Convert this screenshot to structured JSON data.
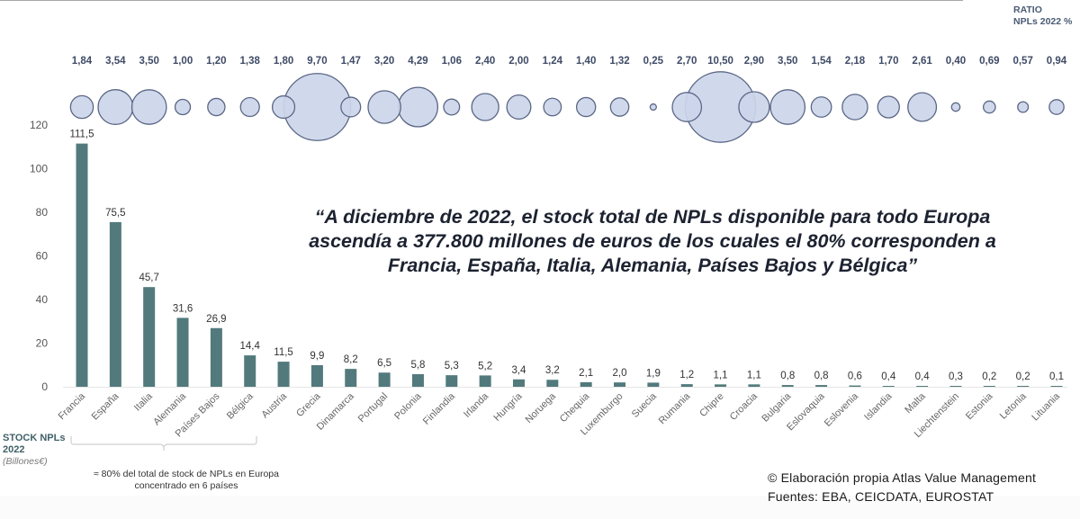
{
  "header": {
    "ratio_title_line1": "RATIO",
    "ratio_title_line2": "NPLs 2022 %"
  },
  "quote": "“A diciembre de 2022, el stock total de NPLs disponible para todo Europa ascendía a 377.800 millones de euros de los cuales el 80% corresponden a Francia, España, Italia, Alemania, Países Bajos y Bélgica”",
  "axis_label": {
    "line1": "STOCK NPLs",
    "line2": "2022",
    "unit": "(Billones€)"
  },
  "bracket_note": "≈ 80% del total de stock de NPLs en Europa concentrado en 6 países",
  "credit": {
    "line1": "© Elaboración propia Atlas Value Management",
    "line2": "Fuentes: EBA, CEICDATA, EUROSTAT"
  },
  "colors": {
    "bar": "#527a7c",
    "bubble_fill": "#ccd5ea",
    "bubble_stroke": "#5b6785"
  },
  "chart_data": {
    "type": "bar",
    "title": "",
    "xlabel": "",
    "ylabel": "STOCK NPLs 2022 (Billones€)",
    "ylim": [
      0,
      120
    ],
    "yticks": [
      0,
      20,
      40,
      60,
      80,
      100,
      120
    ],
    "grid": false,
    "categories": [
      "Francia",
      "España",
      "Italia",
      "Alemania",
      "Países Bajos",
      "Bélgica",
      "Austria",
      "Grecia",
      "Dinamarca",
      "Portugal",
      "Polonia",
      "Finlandia",
      "Irlanda",
      "Hungría",
      "Noruega",
      "Chequia",
      "Luxemburgo",
      "Suecia",
      "Rumania",
      "Chipre",
      "Croacia",
      "Bulgaria",
      "Eslovaquia",
      "Eslovenia",
      "Islandia",
      "Malta",
      "Liechtenstein",
      "Estonia",
      "Letonia",
      "Lituania"
    ],
    "series": [
      {
        "name": "Stock NPLs 2022 (Billones€)",
        "type": "bar",
        "values": [
          111.5,
          75.5,
          45.7,
          31.6,
          26.9,
          14.4,
          11.5,
          9.9,
          8.2,
          6.5,
          5.8,
          5.3,
          5.2,
          3.4,
          3.2,
          2.1,
          2.0,
          1.9,
          1.2,
          1.1,
          1.1,
          0.8,
          0.8,
          0.6,
          0.4,
          0.4,
          0.3,
          0.2,
          0.2,
          0.1
        ],
        "labels": [
          "111,5",
          "75,5",
          "45,7",
          "31,6",
          "26,9",
          "14,4",
          "11,5",
          "9,9",
          "8,2",
          "6,5",
          "5,8",
          "5,3",
          "5,2",
          "3,4",
          "3,2",
          "2,1",
          "2,0",
          "1,9",
          "1,2",
          "1,1",
          "1,1",
          "0,8",
          "0,8",
          "0,6",
          "0,4",
          "0,4",
          "0,3",
          "0,2",
          "0,2",
          "0,1"
        ]
      },
      {
        "name": "Ratio NPLs 2022 %",
        "type": "bubble",
        "values": [
          1.84,
          3.54,
          3.5,
          1.0,
          1.2,
          1.38,
          1.8,
          9.7,
          1.47,
          3.2,
          4.29,
          1.06,
          2.4,
          2.0,
          1.24,
          1.4,
          1.32,
          0.25,
          2.7,
          10.5,
          2.9,
          3.5,
          1.54,
          2.18,
          1.7,
          2.61,
          0.4,
          0.69,
          0.57,
          0.94
        ],
        "labels": [
          "1,84",
          "3,54",
          "3,50",
          "1,00",
          "1,20",
          "1,38",
          "1,80",
          "9,70",
          "1,47",
          "3,20",
          "4,29",
          "1,06",
          "2,40",
          "2,00",
          "1,24",
          "1,40",
          "1,32",
          "0,25",
          "2,70",
          "10,50",
          "2,90",
          "3,50",
          "1,54",
          "2,18",
          "1,70",
          "2,61",
          "0,40",
          "0,69",
          "0,57",
          "0,94"
        ]
      }
    ],
    "annotations": [
      "≈ 80% del total de stock de NPLs en Europa concentrado en 6 países"
    ]
  }
}
